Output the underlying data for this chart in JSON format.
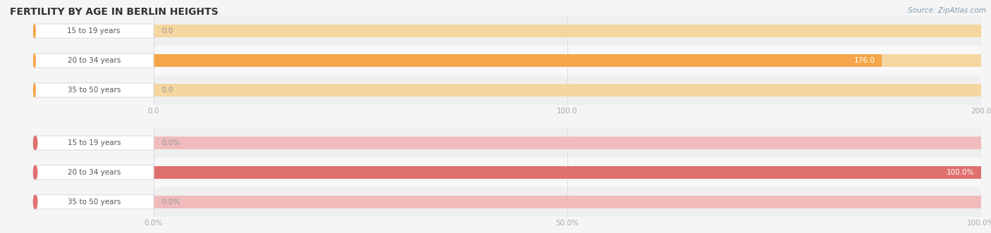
{
  "title": "FERTILITY BY AGE IN BERLIN HEIGHTS",
  "source": "Source: ZipAtlas.com",
  "top_section": {
    "categories": [
      "15 to 19 years",
      "20 to 34 years",
      "35 to 50 years"
    ],
    "values": [
      0.0,
      176.0,
      0.0
    ],
    "xlim": [
      0,
      200
    ],
    "xticks": [
      0.0,
      100.0,
      200.0
    ],
    "bar_color_full": "#F5A64A",
    "bar_color_empty": "#F5D5A0",
    "row_bg_even": "#efefef",
    "row_bg_odd": "#f8f8f8"
  },
  "bottom_section": {
    "categories": [
      "15 to 19 years",
      "20 to 34 years",
      "35 to 50 years"
    ],
    "values": [
      0.0,
      100.0,
      0.0
    ],
    "xlim": [
      0,
      100
    ],
    "xticks": [
      0.0,
      50.0,
      100.0
    ],
    "xtick_labels": [
      "0.0%",
      "50.0%",
      "100.0%"
    ],
    "bar_color_full": "#E07070",
    "bar_color_empty": "#F0BBBB",
    "row_bg_even": "#efefef",
    "row_bg_odd": "#f8f8f8"
  },
  "background_color": "#f5f5f5",
  "bar_height": 0.42,
  "label_fontsize": 7.5,
  "tick_fontsize": 7.5,
  "title_fontsize": 10,
  "category_fontsize": 7.5,
  "source_fontsize": 7.5,
  "label_color_inside": "#ffffff",
  "label_color_outside": "#999999",
  "tick_color": "#aaaaaa",
  "title_color": "#333333",
  "source_color": "#7f9db0",
  "cat_text_color": "#555555",
  "grid_color": "#dddddd",
  "pill_bg_color": "#ffffff",
  "pill_border_alpha": 0.3
}
